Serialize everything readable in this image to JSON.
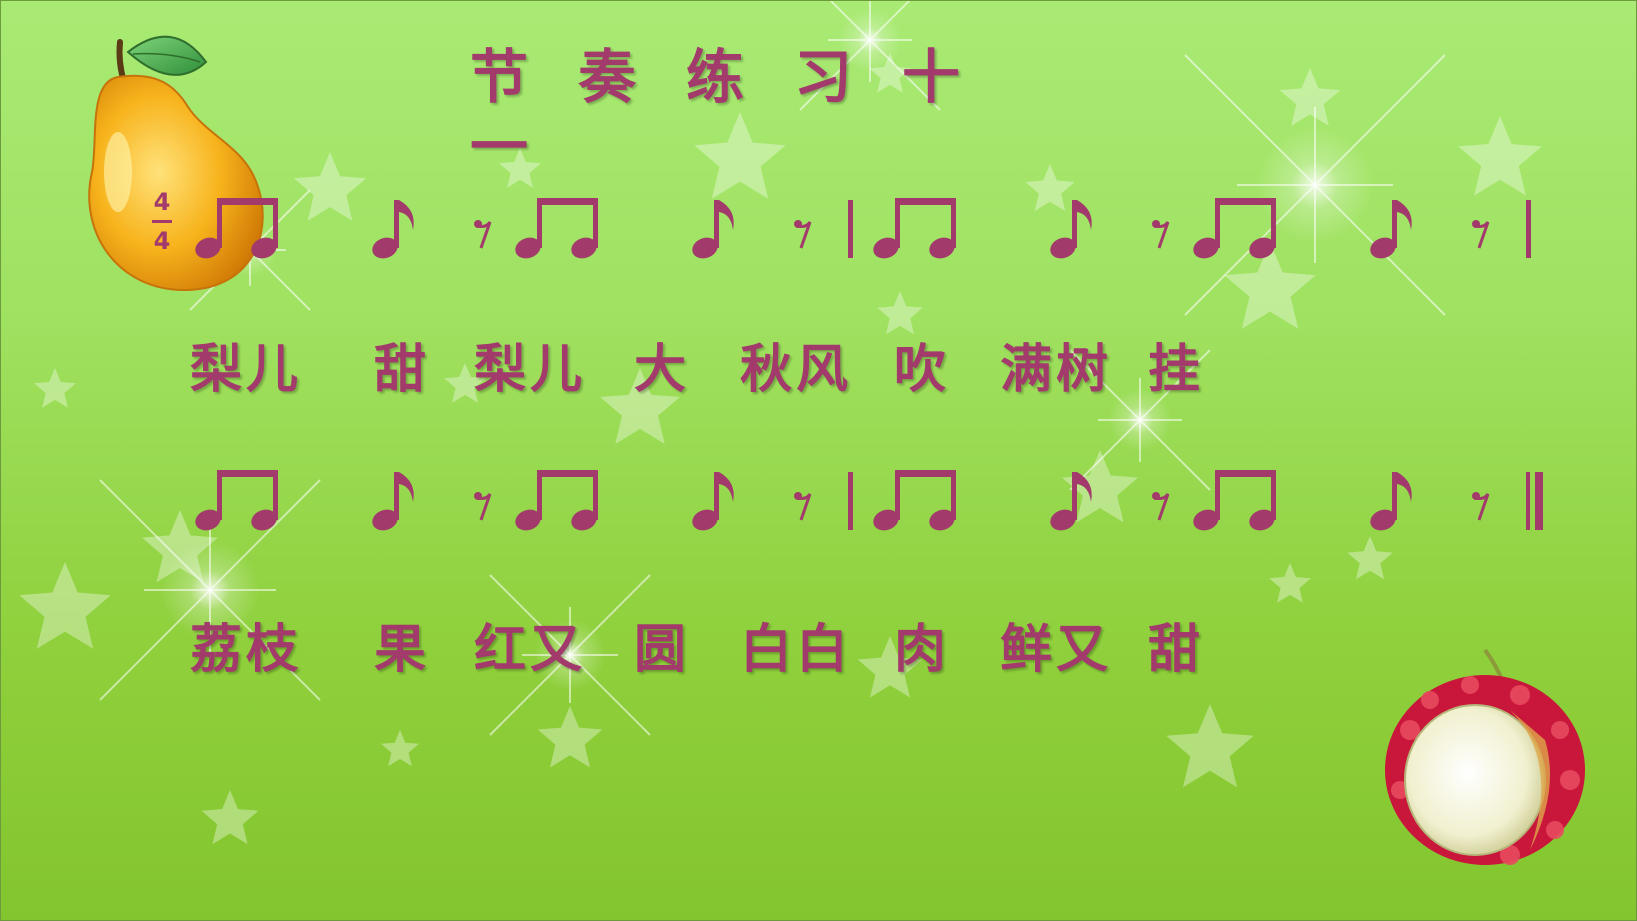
{
  "title": [
    "节",
    "奏",
    "练",
    "习",
    "十",
    "一"
  ],
  "time_signature": {
    "top": "4",
    "bottom": "4"
  },
  "lyrics": [
    [
      [
        "梨",
        "儿"
      ],
      [
        "甜"
      ],
      [
        "梨",
        "儿"
      ],
      [
        "大"
      ],
      [
        "秋",
        "风"
      ],
      [
        "吹"
      ],
      [
        "满",
        "树"
      ],
      [
        "挂"
      ]
    ],
    [
      [
        "荔",
        "枝"
      ],
      [
        "果"
      ],
      [
        "红",
        "又"
      ],
      [
        "圆"
      ],
      [
        "白",
        "白"
      ],
      [
        "肉"
      ],
      [
        "鲜",
        "又"
      ],
      [
        "甜"
      ]
    ]
  ],
  "rhythm_lines": [
    [
      "pair-eighths",
      "eighth",
      "eighth-rest",
      "pair-eighths",
      "eighth",
      "eighth-rest",
      "barline",
      "pair-eighths",
      "eighth",
      "eighth-rest",
      "pair-eighths",
      "eighth",
      "eighth-rest",
      "barline"
    ],
    [
      "pair-eighths",
      "eighth",
      "eighth-rest",
      "pair-eighths",
      "eighth",
      "eighth-rest",
      "barline",
      "pair-eighths",
      "eighth",
      "eighth-rest",
      "pair-eighths",
      "eighth",
      "eighth-rest",
      "final-barline"
    ]
  ],
  "decorations": [
    "pear-illustration",
    "lychee-illustration",
    "stars",
    "sparkles"
  ],
  "colors": {
    "text": "#a23a6c",
    "background_top": "#a9ea74",
    "background_bottom": "#83c52e"
  }
}
